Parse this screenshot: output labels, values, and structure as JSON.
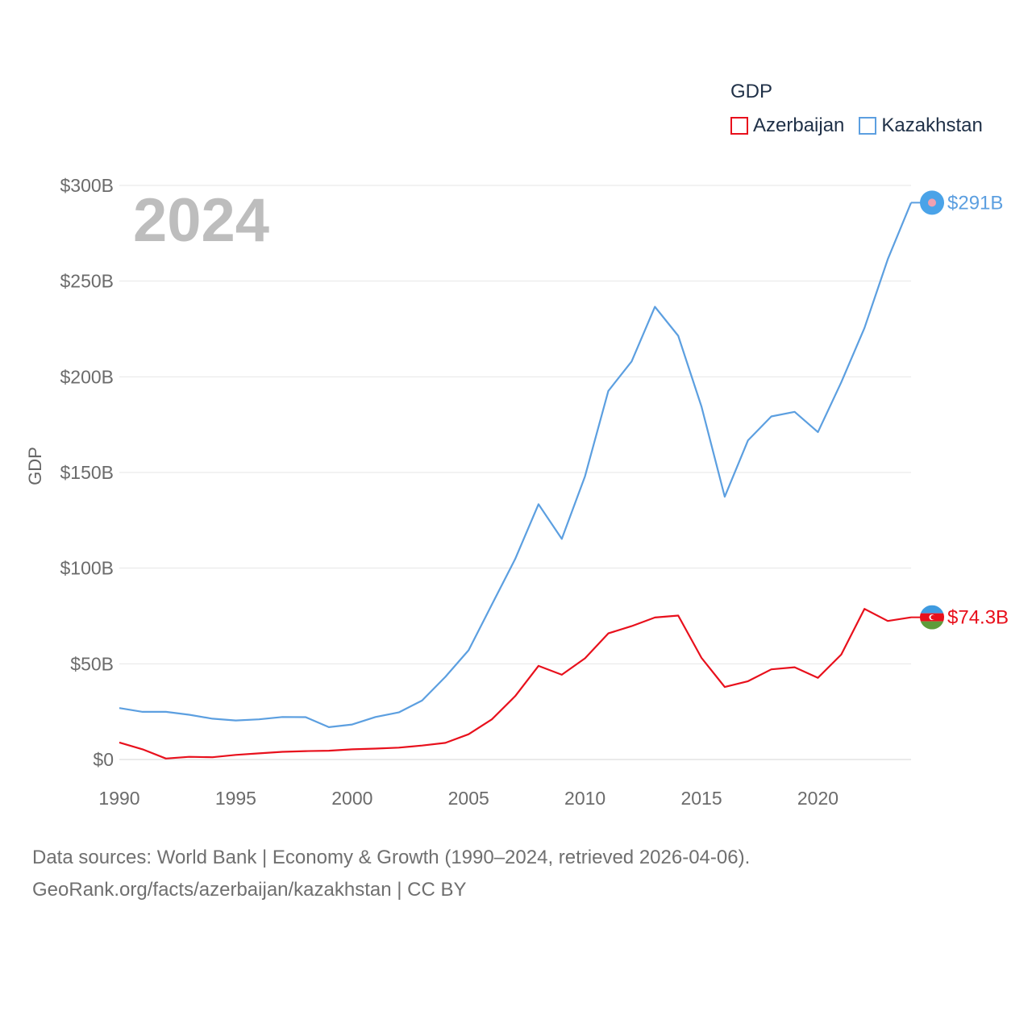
{
  "legend": {
    "title": "GDP",
    "items": [
      {
        "name": "Azerbaijan",
        "color": "#e8101c"
      },
      {
        "name": "Kazakhstan",
        "color": "#5c9fe0"
      }
    ]
  },
  "watermark_year": "2024",
  "source": {
    "line1": "Data sources: World Bank | Economy & Growth (1990–2024, retrieved 2026-04-06).",
    "line2": "GeoRank.org/facts/azerbaijan/kazakhstan | CC BY"
  },
  "chart_data": {
    "type": "line",
    "title": "",
    "xlabel": "",
    "ylabel": "GDP",
    "xlim": [
      1990,
      2024
    ],
    "ylim": [
      0,
      300
    ],
    "x_ticks": [
      1990,
      1995,
      2000,
      2005,
      2010,
      2015,
      2020
    ],
    "y_ticks": [
      {
        "value": 0,
        "label": "$0"
      },
      {
        "value": 50,
        "label": "$50B"
      },
      {
        "value": 100,
        "label": "$100B"
      },
      {
        "value": 150,
        "label": "$150B"
      },
      {
        "value": 200,
        "label": "$200B"
      },
      {
        "value": 250,
        "label": "$250B"
      },
      {
        "value": 300,
        "label": "$300B"
      }
    ],
    "grid": true,
    "legend_position": "top-right",
    "x": [
      1990,
      1991,
      1992,
      1993,
      1994,
      1995,
      1996,
      1997,
      1998,
      1999,
      2000,
      2001,
      2002,
      2003,
      2004,
      2005,
      2006,
      2007,
      2008,
      2009,
      2010,
      2011,
      2012,
      2013,
      2014,
      2015,
      2016,
      2017,
      2018,
      2019,
      2020,
      2021,
      2022,
      2023,
      2024
    ],
    "series": [
      {
        "name": "Kazakhstan",
        "color": "#5c9fe0",
        "end_label": "$291B",
        "values": [
          26.9,
          24.9,
          24.9,
          23.4,
          21.3,
          20.4,
          21.0,
          22.2,
          22.1,
          16.9,
          18.3,
          22.2,
          24.6,
          30.8,
          43.2,
          57.1,
          81.0,
          104.8,
          133.4,
          115.3,
          148.0,
          192.6,
          208.0,
          236.6,
          221.4,
          184.4,
          137.3,
          166.8,
          179.3,
          181.7,
          171.1,
          197.1,
          225.5,
          261.4,
          291.0
        ]
      },
      {
        "name": "Azerbaijan",
        "color": "#e8101c",
        "end_label": "$74.3B",
        "values": [
          8.9,
          5.3,
          0.5,
          1.4,
          1.2,
          2.4,
          3.2,
          4.0,
          4.4,
          4.6,
          5.3,
          5.7,
          6.2,
          7.3,
          8.7,
          13.2,
          21.0,
          33.1,
          48.9,
          44.3,
          52.9,
          65.9,
          69.7,
          74.2,
          75.2,
          53.1,
          37.9,
          40.9,
          47.1,
          48.2,
          42.7,
          54.8,
          78.7,
          72.4,
          74.3
        ]
      }
    ]
  }
}
